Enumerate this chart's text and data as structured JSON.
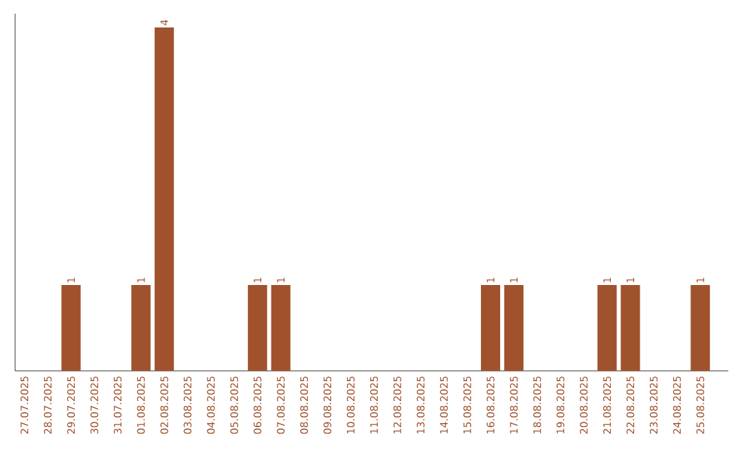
{
  "chart_data": {
    "type": "bar",
    "categories": [
      "27.07.2025",
      "28.07.2025",
      "29.07.2025",
      "30.07.2025",
      "31.07.2025",
      "01.08.2025",
      "02.08.2025",
      "03.08.2025",
      "04.08.2025",
      "05.08.2025",
      "06.08.2025",
      "07.08.2025",
      "08.08.2025",
      "09.08.2025",
      "10.08.2025",
      "11.08.2025",
      "12.08.2025",
      "13.08.2025",
      "14.08.2025",
      "15.08.2025",
      "16.08.2025",
      "17.08.2025",
      "18.08.2025",
      "19.08.2025",
      "20.08.2025",
      "21.08.2025",
      "22.08.2025",
      "23.08.2025",
      "24.08.2025",
      "25.08.2025"
    ],
    "values": [
      0,
      0,
      1,
      0,
      0,
      1,
      4,
      0,
      0,
      0,
      1,
      1,
      0,
      0,
      0,
      0,
      0,
      0,
      0,
      0,
      1,
      1,
      0,
      0,
      0,
      1,
      1,
      0,
      0,
      1
    ],
    "value_labels": [
      null,
      null,
      "1",
      null,
      null,
      "1",
      "4",
      null,
      null,
      null,
      "1",
      "1",
      null,
      null,
      null,
      null,
      null,
      null,
      null,
      null,
      "1",
      "1",
      null,
      null,
      null,
      "1",
      "1",
      null,
      null,
      "1"
    ],
    "color": "#a0522d",
    "ylim": [
      0,
      4.16
    ],
    "tick_labels": "x"
  }
}
